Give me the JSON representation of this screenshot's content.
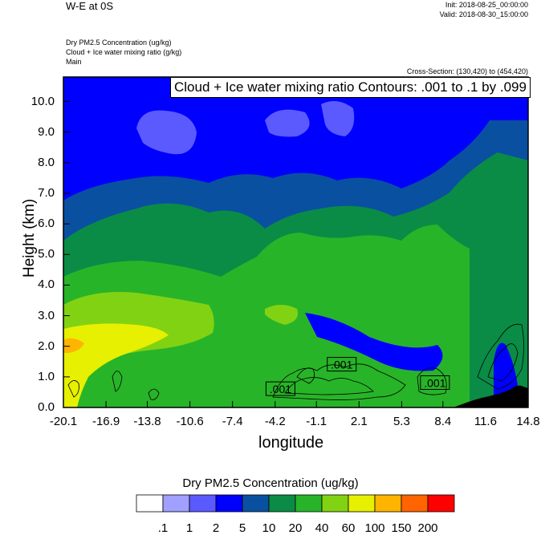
{
  "header": {
    "title": "W-E at 0S",
    "init": "Init: 2018-08-25_00:00:00",
    "valid": "Valid: 2018-08-30_15:00:00",
    "field1": "Dry PM2.5 Concentration   (ug/kg)",
    "field2": "Cloud + Ice water mixing ratio   (g/kg)",
    "field3": "Main",
    "cross_section": "Cross-Section: (130,420) to (454,420)"
  },
  "chart_data": {
    "type": "heatmap",
    "title": "W-E at 0S",
    "xlabel": "longitude",
    "ylabel": "Height (km)",
    "xlim": [
      -20.1,
      14.8
    ],
    "ylim": [
      0.0,
      10.8
    ],
    "x_ticks": [
      "-20.1",
      "-16.9",
      "-13.8",
      "-10.6",
      "-7.4",
      "-4.2",
      "-1.1",
      "2.1",
      "5.3",
      "8.4",
      "11.6",
      "14.8"
    ],
    "y_ticks": [
      "0.0",
      "1.0",
      "2.0",
      "3.0",
      "4.0",
      "5.0",
      "6.0",
      "7.0",
      "8.0",
      "9.0",
      "10.0"
    ],
    "contour_annotation": "Cloud + Ice water mixing ratio Contours: .001 to .1 by .099",
    "contour_labels": [
      {
        "text": ".001",
        "x": -3.8,
        "y": 0.6
      },
      {
        "text": ".001",
        "x": 0.8,
        "y": 1.4
      },
      {
        "text": ".001",
        "x": 7.8,
        "y": 0.8
      }
    ],
    "colorbar": {
      "title": "Dry PM2.5 Concentration  (ug/kg)",
      "levels": [
        ".1",
        "1",
        "2",
        "5",
        "10",
        "20",
        "40",
        "60",
        "100",
        "150",
        "200"
      ],
      "colors": [
        "#ffffff",
        "#a0a0ff",
        "#5a5aff",
        "#0000ff",
        "#0a50a0",
        "#0a8c46",
        "#28b428",
        "#82d214",
        "#e6f000",
        "#ffb400",
        "#ff6400",
        "#ff0000"
      ]
    }
  }
}
